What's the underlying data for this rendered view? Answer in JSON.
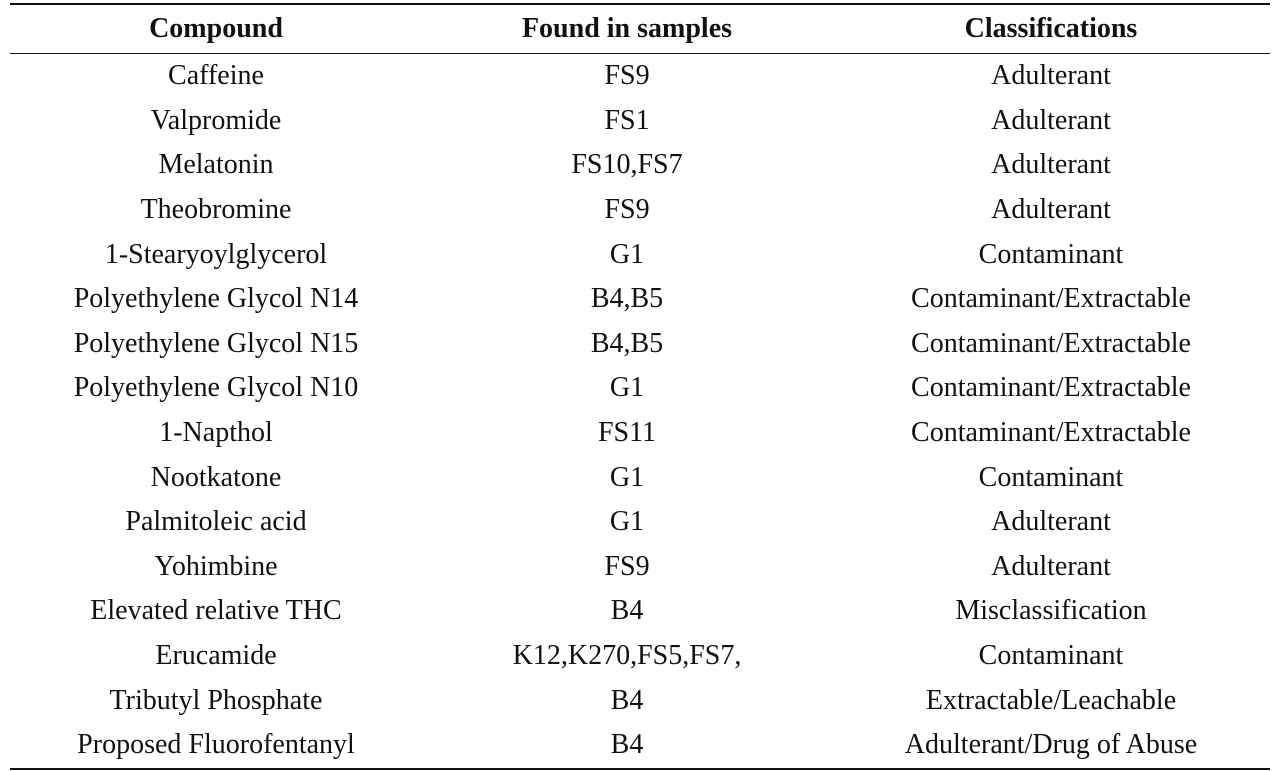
{
  "table": {
    "header": [
      "Compound",
      "Found in samples",
      "Classifications"
    ],
    "rows": [
      [
        "Caffeine",
        "FS9",
        "Adulterant"
      ],
      [
        "Valpromide",
        "FS1",
        "Adulterant"
      ],
      [
        "Melatonin",
        "FS10,FS7",
        "Adulterant"
      ],
      [
        "Theobromine",
        "FS9",
        "Adulterant"
      ],
      [
        "1-Stearyoylglycerol",
        "G1",
        "Contaminant"
      ],
      [
        "Polyethylene Glycol N14",
        "B4,B5",
        "Contaminant/Extractable"
      ],
      [
        "Polyethylene Glycol N15",
        "B4,B5",
        "Contaminant/Extractable"
      ],
      [
        "Polyethylene Glycol N10",
        "G1",
        "Contaminant/Extractable"
      ],
      [
        "1-Napthol",
        "FS11",
        "Contaminant/Extractable"
      ],
      [
        "Nootkatone",
        "G1",
        "Contaminant"
      ],
      [
        "Palmitoleic acid",
        "G1",
        "Adulterant"
      ],
      [
        "Yohimbine",
        "FS9",
        "Adulterant"
      ],
      [
        "Elevated relative THC",
        "B4",
        "Misclassification"
      ],
      [
        "Erucamide",
        "K12,K270,FS5,FS7,",
        "Contaminant"
      ],
      [
        "Tributyl Phosphate",
        "B4",
        "Extractable/Leachable"
      ],
      [
        "Proposed Fluorofentanyl",
        "B4",
        "Adulterant/Drug of Abuse"
      ]
    ]
  }
}
